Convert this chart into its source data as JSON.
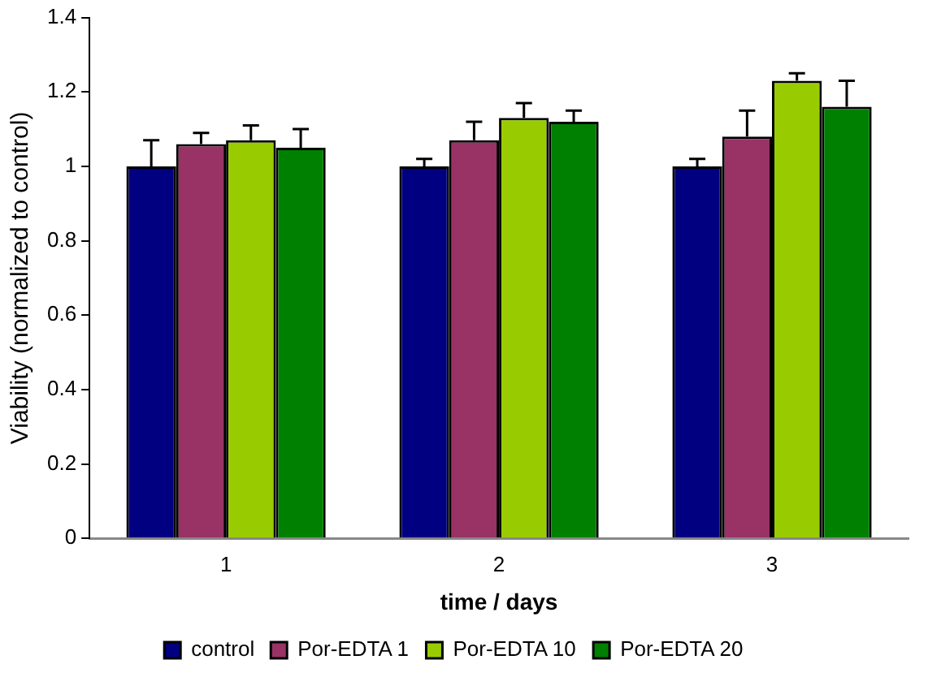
{
  "chart_data": {
    "type": "bar",
    "xlabel": "time / days",
    "ylabel": "Viability (normalized to control)",
    "categories": [
      "1",
      "2",
      "3"
    ],
    "series": [
      {
        "name": "control",
        "color": "#000080",
        "values": [
          1,
          1,
          1
        ],
        "errors": [
          [
            1,
            1.07
          ],
          [
            1,
            1.02
          ],
          [
            1,
            1.02
          ]
        ]
      },
      {
        "name": "Por-EDTA 1",
        "color": "#993366",
        "values": [
          1.06,
          1.07,
          1.08
        ],
        "errors": [
          [
            1.06,
            1.09
          ],
          [
            1.07,
            1.12
          ],
          [
            1.08,
            1.15
          ]
        ]
      },
      {
        "name": "Por-EDTA 10",
        "color": "#99cc00",
        "values": [
          1.07,
          1.13,
          1.23
        ],
        "errors": [
          [
            1.07,
            1.11
          ],
          [
            1.13,
            1.17
          ],
          [
            1.23,
            1.25
          ]
        ]
      },
      {
        "name": "Por-EDTA 20",
        "color": "#008000",
        "values": [
          1.05,
          1.12,
          1.16
        ],
        "errors": [
          [
            1.05,
            1.1
          ],
          [
            1.12,
            1.15
          ],
          [
            1.16,
            1.23
          ]
        ]
      }
    ],
    "ylim": [
      0,
      1.4
    ],
    "yticks": [
      0,
      0.2,
      0.4,
      0.6,
      0.8,
      1,
      1.2,
      1.4
    ],
    "grid": false,
    "legend": "bottom"
  }
}
